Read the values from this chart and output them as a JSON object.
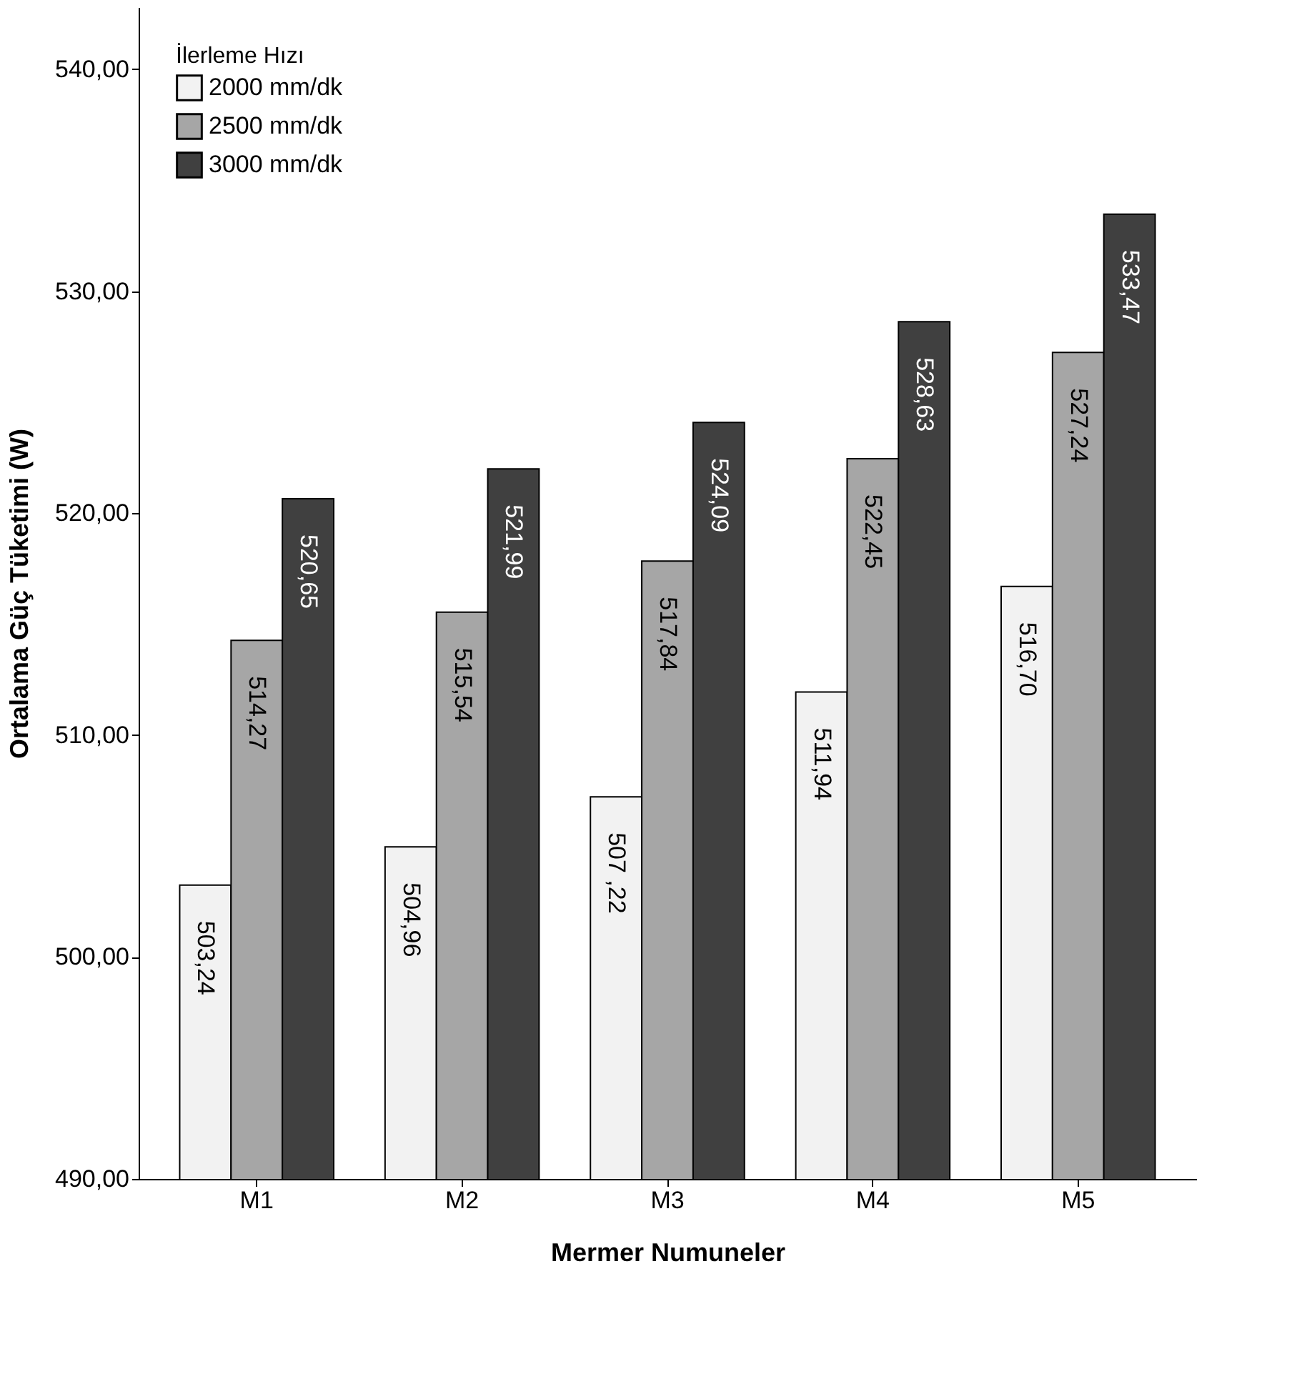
{
  "chart_data": {
    "type": "bar",
    "xlabel": "Mermer Numuneler",
    "ylabel": "Ortalama Güç Tüketimi (W)",
    "legend_title": "İlerleme Hızı",
    "categories": [
      "M1",
      "M2",
      "M3",
      "M4",
      "M5"
    ],
    "series": [
      {
        "name": "2000 mm/dk",
        "color": "#f2f2f2",
        "values": [
          503.24,
          504.96,
          507.22,
          511.94,
          516.7
        ],
        "value_labels": [
          "503,24",
          "504,96",
          "507 ,22",
          "511,94",
          "516,70"
        ]
      },
      {
        "name": "2500 mm/dk",
        "color": "#a6a6a6",
        "values": [
          514.27,
          515.54,
          517.84,
          522.45,
          527.24
        ],
        "value_labels": [
          "514,27",
          "515,54",
          "517,84",
          "522,45",
          "527,24"
        ]
      },
      {
        "name": "3000 mm/dk",
        "color": "#404040",
        "values": [
          520.65,
          521.99,
          524.09,
          528.63,
          533.47
        ],
        "value_labels": [
          "520,65",
          "521,99",
          "524,09",
          "528,63",
          "533,47"
        ]
      }
    ],
    "ylim": [
      490,
      542.8
    ],
    "yticks": [
      {
        "value": 490,
        "label": "490,00"
      },
      {
        "value": 500,
        "label": "500,00"
      },
      {
        "value": 510,
        "label": "510,00"
      },
      {
        "value": 520,
        "label": "520,00"
      },
      {
        "value": 530,
        "label": "530,00"
      },
      {
        "value": 540,
        "label": "540,00"
      }
    ],
    "legend": "top left",
    "grid": false
  }
}
